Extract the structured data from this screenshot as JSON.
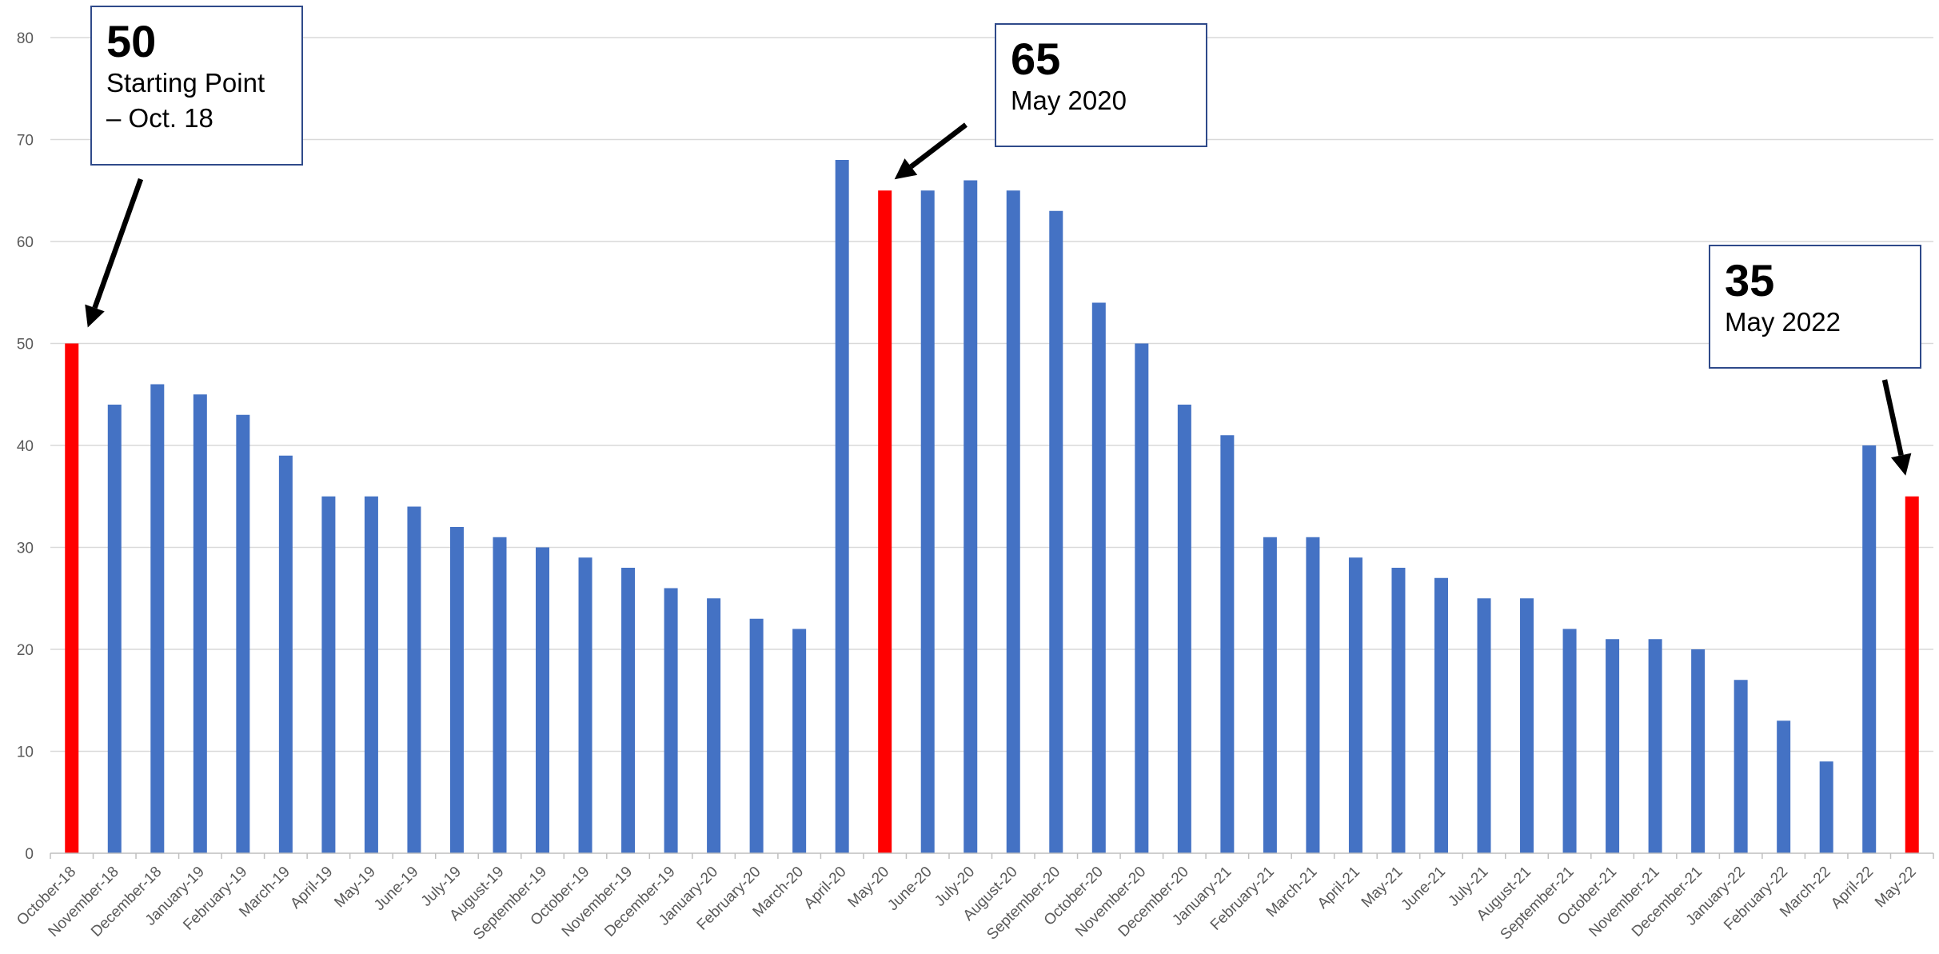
{
  "chart_data": {
    "type": "bar",
    "categories": [
      "October-18",
      "November-18",
      "December-18",
      "January-19",
      "February-19",
      "March-19",
      "April-19",
      "May-19",
      "June-19",
      "July-19",
      "August-19",
      "September-19",
      "October-19",
      "November-19",
      "December-19",
      "January-20",
      "February-20",
      "March-20",
      "April-20",
      "May-20",
      "June-20",
      "July-20",
      "August-20",
      "September-20",
      "October-20",
      "November-20",
      "December-20",
      "January-21",
      "February-21",
      "March-21",
      "April-21",
      "May-21",
      "June-21",
      "July-21",
      "August-21",
      "September-21",
      "October-21",
      "November-21",
      "December-21",
      "January-22",
      "February-22",
      "March-22",
      "April-22",
      "May-22"
    ],
    "values": [
      50,
      44,
      46,
      45,
      43,
      39,
      35,
      35,
      34,
      32,
      31,
      30,
      29,
      28,
      26,
      25,
      23,
      22,
      68,
      65,
      65,
      66,
      65,
      63,
      54,
      50,
      44,
      41,
      31,
      31,
      29,
      28,
      27,
      25,
      25,
      22,
      21,
      21,
      20,
      17,
      13,
      9,
      40,
      35
    ],
    "highlighted_categories": [
      "October-18",
      "May-20",
      "May-22"
    ],
    "ylim": [
      0,
      80
    ],
    "y_ticks": [
      0,
      10,
      20,
      30,
      40,
      50,
      60,
      70,
      80
    ],
    "grid": true,
    "legend": "none",
    "colors": {
      "bar": "#4472c4",
      "highlight": "#ff0000",
      "grid": "#d9d9d9",
      "axis": "#bfbfbf",
      "callout_border": "#2f4a8a",
      "arrow": "#000000"
    }
  },
  "callouts": [
    {
      "id": "start",
      "value": "50",
      "text": "Starting Point\n– Oct. 18",
      "target": "October-18"
    },
    {
      "id": "may20",
      "value": "65",
      "text": "May 2020",
      "target": "May-20"
    },
    {
      "id": "may22",
      "value": "35",
      "text": "May 2022",
      "target": "May-22"
    }
  ]
}
